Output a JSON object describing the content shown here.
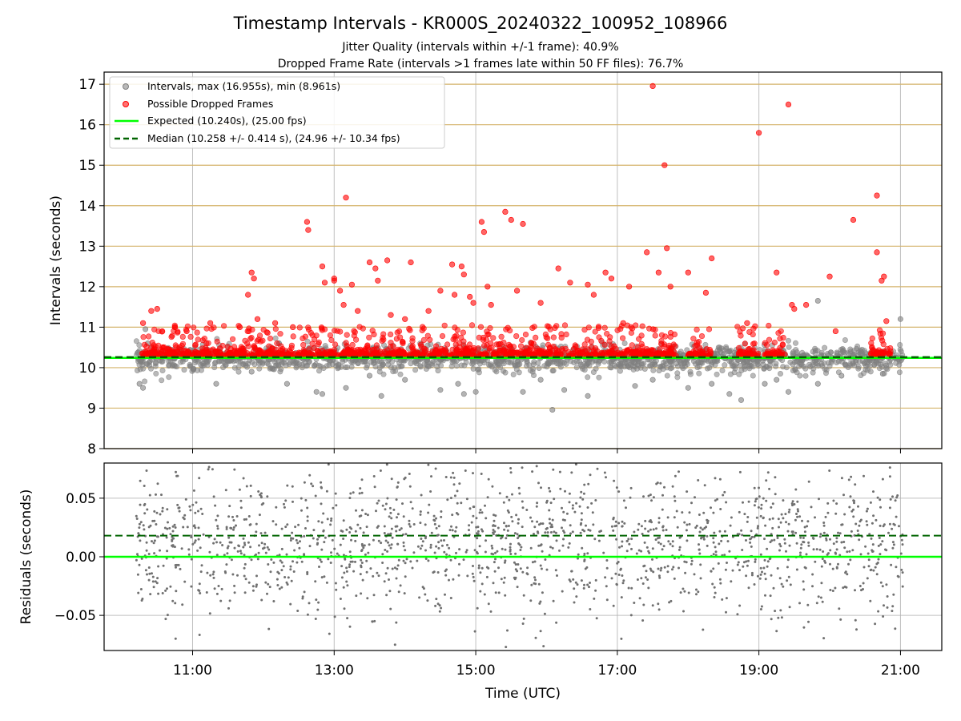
{
  "chart_data": [
    {
      "type": "scatter",
      "title": "Timestamp Intervals - KR000S_20240322_100952_108966",
      "subtitle_1": "Jitter Quality (intervals within +/-1 frame): 40.9%",
      "subtitle_2": "Dropped Frame Rate (intervals >1 frames late within 50 FF files): 76.7%",
      "xlabel": "",
      "ylabel": "Intervals (seconds)",
      "xlim": [
        "09:45",
        "21:35"
      ],
      "ylim": [
        8,
        17.3
      ],
      "x_ticks": [
        "11:00",
        "13:00",
        "15:00",
        "17:00",
        "19:00",
        "21:00"
      ],
      "y_ticks": [
        "8",
        "9",
        "10",
        "11",
        "12",
        "13",
        "14",
        "15",
        "16",
        "17"
      ],
      "grid": "vertical gray + horizontal tan",
      "legend_position": "upper-left",
      "expected_interval": 10.24,
      "median_interval": 10.258,
      "series": [
        {
          "name": "Intervals, max (16.955s), min (8.961s)",
          "color": "#808080",
          "points": [
            [
              "10:15",
              9.6
            ],
            [
              "10:18",
              9.5
            ],
            [
              "10:20",
              10.95
            ],
            [
              "10:22",
              10.6
            ],
            [
              "11:20",
              9.6
            ],
            [
              "11:50",
              9.9
            ],
            [
              "12:20",
              9.6
            ],
            [
              "12:45",
              9.4
            ],
            [
              "12:50",
              9.35
            ],
            [
              "13:10",
              9.5
            ],
            [
              "13:30",
              9.8
            ],
            [
              "13:40",
              9.3
            ],
            [
              "14:00",
              9.7
            ],
            [
              "14:30",
              9.45
            ],
            [
              "14:45",
              9.6
            ],
            [
              "14:50",
              9.35
            ],
            [
              "15:00",
              9.4
            ],
            [
              "15:40",
              9.4
            ],
            [
              "15:55",
              9.7
            ],
            [
              "16:05",
              8.96
            ],
            [
              "16:15",
              9.45
            ],
            [
              "16:35",
              9.3
            ],
            [
              "17:15",
              9.55
            ],
            [
              "17:30",
              9.7
            ],
            [
              "18:00",
              9.5
            ],
            [
              "18:20",
              9.6
            ],
            [
              "18:35",
              9.35
            ],
            [
              "18:45",
              9.2
            ],
            [
              "19:05",
              9.6
            ],
            [
              "19:15",
              9.7
            ],
            [
              "19:25",
              9.4
            ],
            [
              "19:50",
              11.65
            ],
            [
              "19:50",
              9.6
            ],
            [
              "20:10",
              9.8
            ],
            [
              "21:00",
              11.2
            ],
            [
              "20:45",
              9.85
            ]
          ]
        },
        {
          "name": "Possible Dropped Frames",
          "color": "#ff0000",
          "points": [
            [
              "10:25",
              11.4
            ],
            [
              "10:30",
              11.45
            ],
            [
              "10:18",
              11.1
            ],
            [
              "10:45",
              11.0
            ],
            [
              "10:55",
              10.9
            ],
            [
              "11:15",
              11.1
            ],
            [
              "11:40",
              11.0
            ],
            [
              "11:47",
              11.8
            ],
            [
              "11:50",
              12.35
            ],
            [
              "11:52",
              12.2
            ],
            [
              "11:55",
              11.2
            ],
            [
              "12:10",
              11.1
            ],
            [
              "12:25",
              11.0
            ],
            [
              "12:37",
              13.6
            ],
            [
              "12:38",
              13.4
            ],
            [
              "12:50",
              12.5
            ],
            [
              "12:52",
              12.1
            ],
            [
              "13:00",
              12.2
            ],
            [
              "13:00",
              12.15
            ],
            [
              "13:05",
              11.9
            ],
            [
              "13:08",
              11.55
            ],
            [
              "13:10",
              14.2
            ],
            [
              "13:15",
              12.05
            ],
            [
              "13:20",
              11.4
            ],
            [
              "13:30",
              12.6
            ],
            [
              "13:35",
              12.45
            ],
            [
              "13:37",
              12.15
            ],
            [
              "13:45",
              12.65
            ],
            [
              "13:48",
              11.3
            ],
            [
              "14:00",
              11.2
            ],
            [
              "14:05",
              12.6
            ],
            [
              "14:20",
              11.4
            ],
            [
              "14:30",
              11.9
            ],
            [
              "14:40",
              12.55
            ],
            [
              "14:42",
              11.8
            ],
            [
              "14:48",
              12.5
            ],
            [
              "14:50",
              12.3
            ],
            [
              "14:55",
              11.75
            ],
            [
              "14:58",
              11.6
            ],
            [
              "15:05",
              13.6
            ],
            [
              "15:07",
              13.35
            ],
            [
              "15:10",
              12.0
            ],
            [
              "15:13",
              11.55
            ],
            [
              "15:25",
              13.85
            ],
            [
              "15:30",
              13.65
            ],
            [
              "15:35",
              11.9
            ],
            [
              "15:40",
              13.55
            ],
            [
              "15:55",
              11.6
            ],
            [
              "16:10",
              12.45
            ],
            [
              "16:20",
              12.1
            ],
            [
              "16:35",
              12.05
            ],
            [
              "16:40",
              11.8
            ],
            [
              "16:50",
              12.35
            ],
            [
              "16:55",
              12.2
            ],
            [
              "17:05",
              11.1
            ],
            [
              "17:10",
              12.0
            ],
            [
              "17:25",
              12.85
            ],
            [
              "17:30",
              16.955
            ],
            [
              "17:35",
              12.35
            ],
            [
              "17:40",
              15.0
            ],
            [
              "17:42",
              12.95
            ],
            [
              "17:45",
              12.0
            ],
            [
              "18:00",
              12.35
            ],
            [
              "18:15",
              11.85
            ],
            [
              "18:20",
              12.7
            ],
            [
              "18:50",
              11.1
            ],
            [
              "19:00",
              15.8
            ],
            [
              "19:15",
              12.35
            ],
            [
              "19:25",
              16.5
            ],
            [
              "19:28",
              11.55
            ],
            [
              "19:30",
              11.45
            ],
            [
              "19:40",
              11.55
            ],
            [
              "20:00",
              12.25
            ],
            [
              "20:05",
              10.9
            ],
            [
              "20:20",
              13.65
            ],
            [
              "20:40",
              14.25
            ],
            [
              "20:40",
              12.85
            ],
            [
              "20:44",
              12.15
            ],
            [
              "20:46",
              12.25
            ],
            [
              "20:48",
              11.15
            ]
          ]
        }
      ],
      "legend": [
        "Intervals, max (16.955s), min (8.961s)",
        "Possible Dropped Frames",
        "Expected (10.240s), (25.00 fps)",
        "Median (10.258 +/- 0.414 s), (24.96 +/- 10.34 fps)"
      ],
      "colors": {
        "gray": "#808080",
        "red": "#ff0000",
        "expected": "#00ff00",
        "median": "#006400",
        "tan_grid": "#d4b36a"
      }
    },
    {
      "type": "scatter",
      "title": "",
      "xlabel": "Time (UTC)",
      "ylabel": "Residuals (seconds)",
      "xlim": [
        "09:45",
        "21:35"
      ],
      "ylim": [
        -0.08,
        0.08
      ],
      "x_ticks": [
        "11:00",
        "13:00",
        "15:00",
        "17:00",
        "19:00",
        "21:00"
      ],
      "y_ticks": [
        "−0.05",
        "0.00",
        "0.05"
      ],
      "grid": "on",
      "expected_residual": 0.0,
      "median_residual": 0.018,
      "series": [
        {
          "color": "#808080",
          "points": "dense residual cloud"
        }
      ]
    }
  ]
}
